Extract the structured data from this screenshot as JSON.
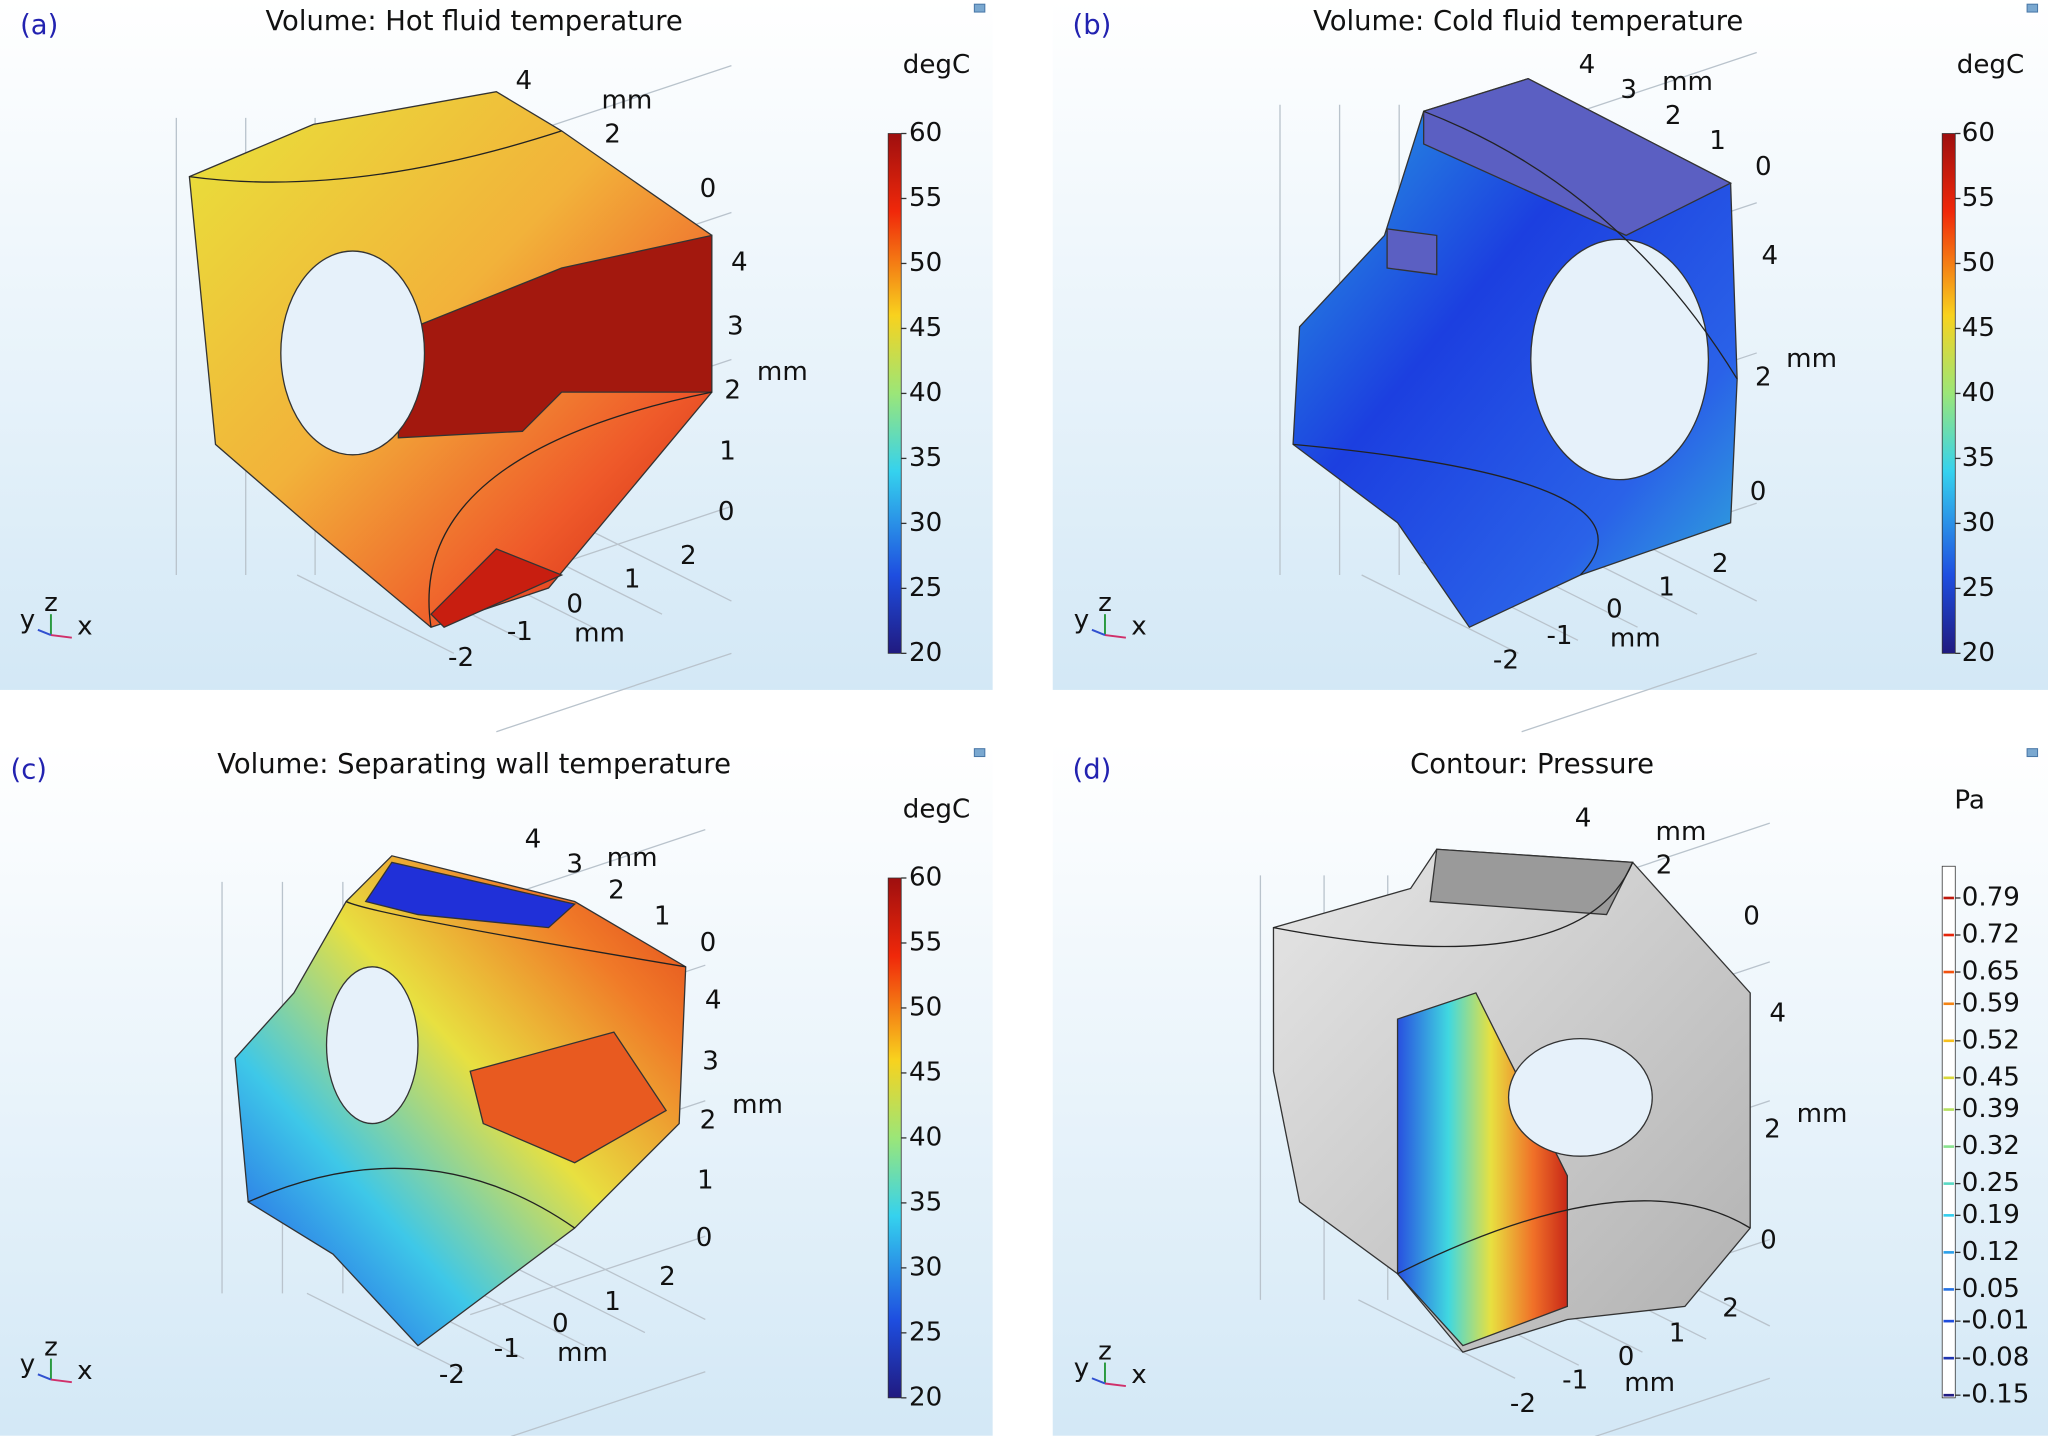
{
  "panels": [
    {
      "label": "(a)",
      "title": "Volume: Hot fluid temperature",
      "colorbar": {
        "unit": "degC",
        "range": [
          20,
          60
        ],
        "ticks": [
          60,
          55,
          50,
          45,
          40,
          35,
          30,
          25,
          20
        ]
      },
      "axes": {
        "top": {
          "ticks": [
            4,
            2,
            0
          ],
          "unit": "mm"
        },
        "right": {
          "ticks": [
            4,
            3,
            2,
            1,
            0
          ],
          "unit": "mm"
        },
        "bottom": {
          "ticks": [
            2,
            1,
            0,
            -1,
            -2
          ],
          "unit": "mm"
        }
      },
      "triad": [
        "y",
        "z",
        "x"
      ]
    },
    {
      "label": "(b)",
      "title": "Volume: Cold fluid temperature",
      "colorbar": {
        "unit": "degC",
        "range": [
          20,
          60
        ],
        "ticks": [
          60,
          55,
          50,
          45,
          40,
          35,
          30,
          25,
          20
        ]
      },
      "axes": {
        "top": {
          "ticks": [
            4,
            3,
            2,
            1,
            0
          ],
          "unit": "mm"
        },
        "right": {
          "ticks": [
            4,
            2,
            0
          ],
          "unit": "mm"
        },
        "bottom": {
          "ticks": [
            2,
            1,
            0,
            -1,
            -2
          ],
          "unit": "mm"
        }
      },
      "triad": [
        "y",
        "z",
        "x"
      ]
    },
    {
      "label": "(c)",
      "title": "Volume: Separating wall temperature",
      "colorbar": {
        "unit": "degC",
        "range": [
          20,
          60
        ],
        "ticks": [
          60,
          55,
          50,
          45,
          40,
          35,
          30,
          25,
          20
        ]
      },
      "axes": {
        "top": {
          "ticks": [
            4,
            3,
            2,
            1,
            0
          ],
          "unit": "mm"
        },
        "right": {
          "ticks": [
            4,
            3,
            2,
            1,
            0
          ],
          "unit": "mm"
        },
        "bottom": {
          "ticks": [
            2,
            1,
            0,
            -1,
            -2
          ],
          "unit": "mm"
        }
      },
      "triad": [
        "y",
        "z",
        "x"
      ]
    },
    {
      "label": "(d)",
      "title": "Contour: Pressure",
      "colorbar": {
        "unit": "Pa",
        "range": [
          -0.155,
          0.85
        ],
        "ticks": [
          0.79,
          0.72,
          0.65,
          0.59,
          0.52,
          0.45,
          0.39,
          0.32,
          0.25,
          0.19,
          0.12,
          0.05,
          -0.01,
          -0.08,
          -0.15
        ]
      },
      "axes": {
        "top": {
          "ticks": [
            4,
            2,
            0
          ],
          "unit": "mm"
        },
        "right": {
          "ticks": [
            4,
            2,
            0
          ],
          "unit": "mm"
        },
        "bottom": {
          "ticks": [
            2,
            1,
            0,
            -1,
            -2
          ],
          "unit": "mm"
        }
      },
      "triad": [
        "y",
        "z",
        "x"
      ]
    }
  ]
}
